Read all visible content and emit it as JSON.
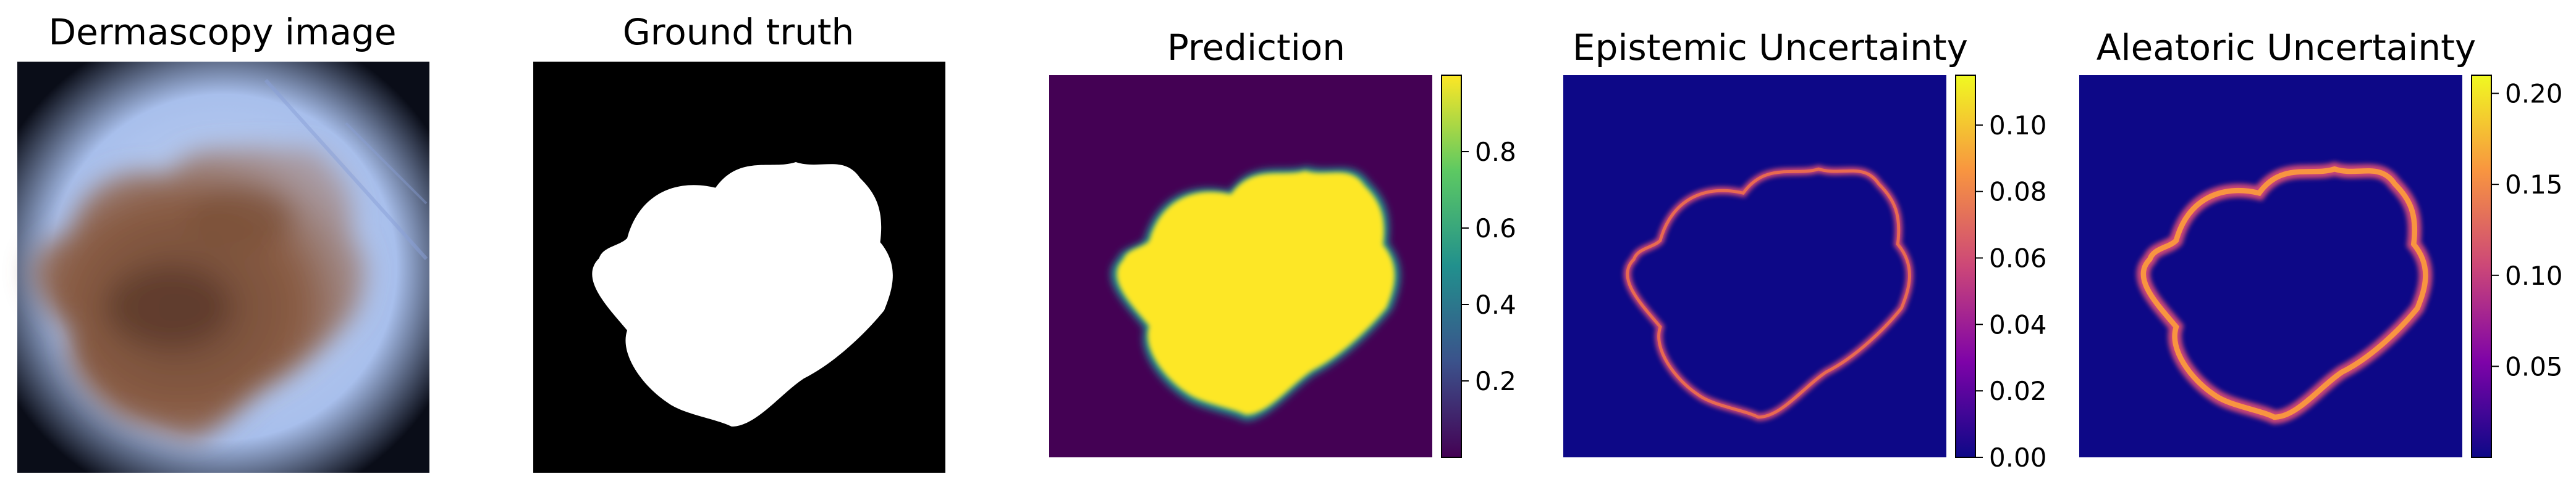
{
  "panels": [
    {
      "id": "dermoscopy",
      "title": "Dermascopy image"
    },
    {
      "id": "ground_truth",
      "title": "Ground truth"
    },
    {
      "id": "prediction",
      "title": "Prediction",
      "colormap": "viridis",
      "colorbar": {
        "ticks": [
          "0.2",
          "0.4",
          "0.6",
          "0.8"
        ],
        "tick_values": [
          0.2,
          0.4,
          0.6,
          0.8
        ],
        "range": [
          0.0,
          1.0
        ]
      }
    },
    {
      "id": "epistemic",
      "title": "Epistemic Uncertainty",
      "colormap": "plasma",
      "colorbar": {
        "ticks": [
          "0.00",
          "0.02",
          "0.04",
          "0.06",
          "0.08",
          "0.10"
        ],
        "tick_values": [
          0.0,
          0.02,
          0.04,
          0.06,
          0.08,
          0.1
        ],
        "range": [
          0.0,
          0.115
        ]
      }
    },
    {
      "id": "aleatoric",
      "title": "Aleatoric Uncertainty",
      "colormap": "plasma",
      "colorbar": {
        "ticks": [
          "0.05",
          "0.10",
          "0.15",
          "0.20"
        ],
        "tick_values": [
          0.05,
          0.1,
          0.15,
          0.2
        ],
        "range": [
          0.0,
          0.21
        ]
      }
    }
  ],
  "colors": {
    "viridis_low": "#440154",
    "viridis_mid": "#21908d",
    "viridis_high": "#fde725",
    "plasma_low": "#0d0887",
    "plasma_mid": "#cc4778",
    "plasma_high": "#f0f921",
    "mask_bg": "#000000",
    "mask_fg": "#ffffff"
  }
}
